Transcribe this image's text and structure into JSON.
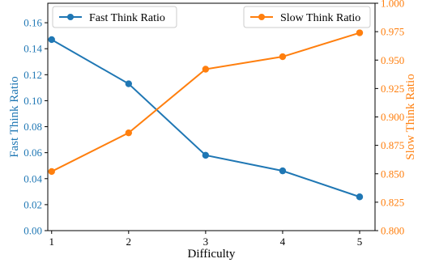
{
  "colors": {
    "fast": "#1f77b4",
    "slow": "#ff7f0e",
    "axis": "#000000"
  },
  "chart_data": {
    "type": "line",
    "x": [
      1,
      2,
      3,
      4,
      5
    ],
    "xlabel": "Difficulty",
    "xticks": [
      "1",
      "2",
      "3",
      "4",
      "5"
    ],
    "xlim": [
      0.95,
      5.2
    ],
    "series": [
      {
        "name": "Fast Think Ratio",
        "axis": "left",
        "values": [
          0.147,
          0.113,
          0.058,
          0.046,
          0.026
        ]
      },
      {
        "name": "Slow Think Ratio",
        "axis": "right",
        "values": [
          0.852,
          0.886,
          0.942,
          0.953,
          0.974
        ]
      }
    ],
    "left_axis": {
      "label": "Fast Think Ratio",
      "ylim": [
        0.0,
        0.175
      ],
      "ticks": [
        "0.00",
        "0.02",
        "0.04",
        "0.06",
        "0.08",
        "0.10",
        "0.12",
        "0.14",
        "0.16"
      ]
    },
    "right_axis": {
      "label": "Slow Think Ratio",
      "ylim": [
        0.8,
        1.0
      ],
      "ticks": [
        "0.800",
        "0.825",
        "0.850",
        "0.875",
        "0.900",
        "0.925",
        "0.950",
        "0.975",
        "1.000"
      ]
    },
    "legend": [
      {
        "label": "Fast Think Ratio",
        "placement": "top-left"
      },
      {
        "label": "Slow Think Ratio",
        "placement": "top-right"
      }
    ],
    "grid": false
  }
}
